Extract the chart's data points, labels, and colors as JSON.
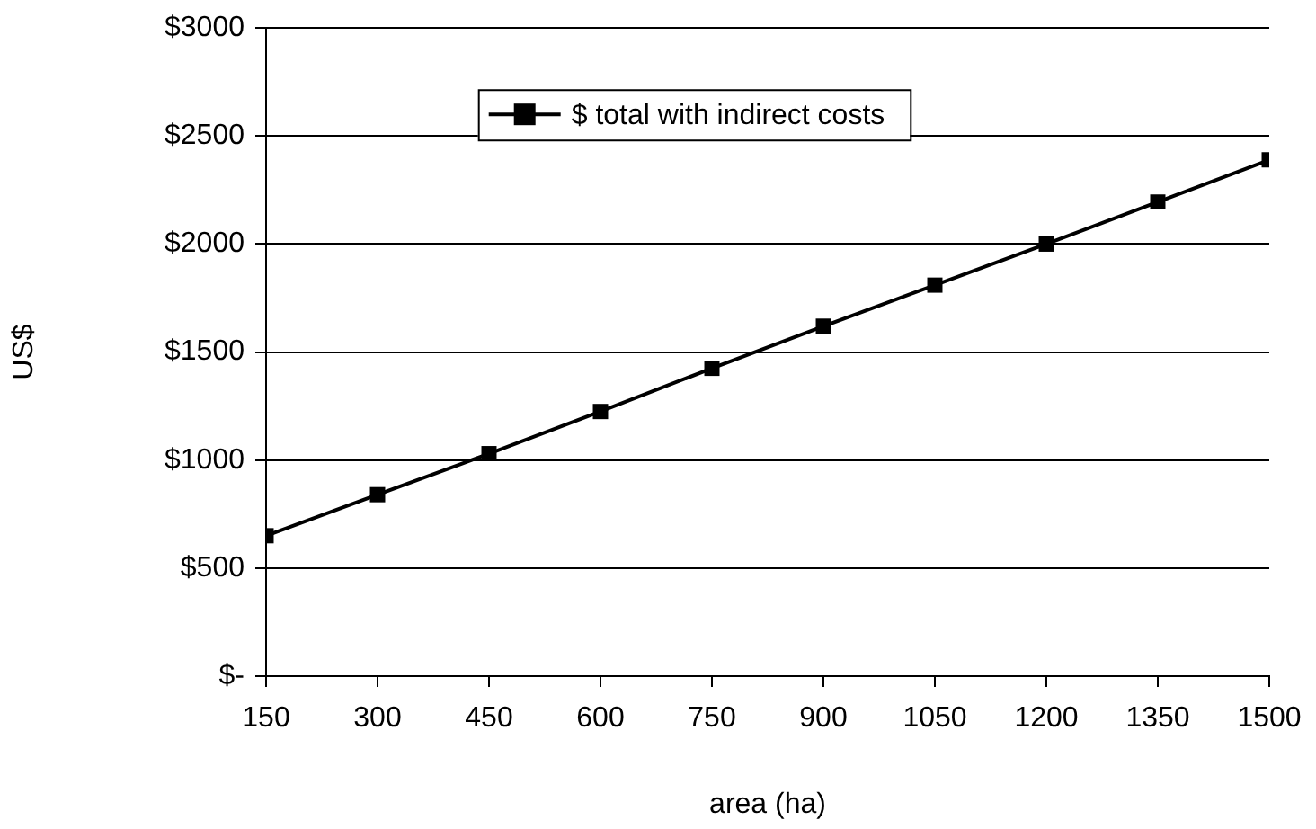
{
  "chart_data": {
    "type": "line",
    "xlabel": "area (ha)",
    "ylabel": "US$",
    "x": [
      150,
      300,
      450,
      600,
      750,
      900,
      1050,
      1200,
      1350,
      1500
    ],
    "series": [
      {
        "name": "$ total with indirect costs",
        "color": "#000000",
        "values": [
          650,
          840,
          1030,
          1225,
          1425,
          1620,
          1810,
          2000,
          2195,
          2390
        ]
      }
    ],
    "xlim": [
      150,
      1500
    ],
    "xticks": [
      150,
      300,
      450,
      600,
      750,
      900,
      1050,
      1200,
      1350,
      1500
    ],
    "ylim": [
      0,
      3000
    ],
    "yticks": [
      {
        "value": 0,
        "label": "$-"
      },
      {
        "value": 500,
        "label": "$500"
      },
      {
        "value": 1000,
        "label": "$1000"
      },
      {
        "value": 1500,
        "label": "$1500"
      },
      {
        "value": 2000,
        "label": "$2000"
      },
      {
        "value": 2500,
        "label": "$2500"
      },
      {
        "value": 3000,
        "label": "$3000"
      }
    ],
    "grid": "y",
    "legend": "top",
    "marker": "square",
    "line_style": "solid"
  }
}
